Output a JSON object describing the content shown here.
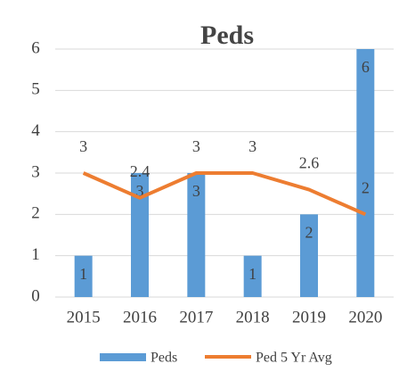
{
  "chart_data": {
    "type": "bar",
    "title": "Peds",
    "categories": [
      "2015",
      "2016",
      "2017",
      "2018",
      "2019",
      "2020"
    ],
    "series": [
      {
        "name": "Peds",
        "type": "bar",
        "color": "#5b9bd5",
        "values": [
          1,
          3,
          3,
          1,
          2,
          6
        ]
      },
      {
        "name": "Ped 5 Yr Avg",
        "type": "line",
        "color": "#ed7d31",
        "values": [
          3,
          2.4,
          3,
          3,
          2.6,
          2
        ]
      }
    ],
    "ylim": [
      0,
      6
    ],
    "yticks": [
      0,
      1,
      2,
      3,
      4,
      5,
      6
    ],
    "grid": true,
    "legend": "bottom"
  }
}
